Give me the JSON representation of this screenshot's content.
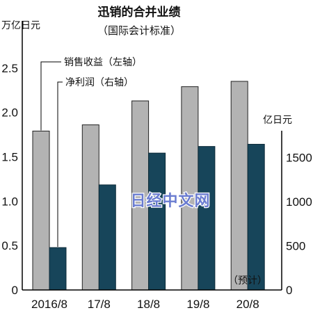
{
  "chart_data": {
    "type": "bar",
    "title": "迅销的合并业绩",
    "subtitle": "（国际会计标准）",
    "categories": [
      "2016/8",
      "17/8",
      "18/8",
      "19/8",
      "20/8"
    ],
    "series": [
      {
        "name": "销售收益（左轴）",
        "axis": "left",
        "color": "#b3b3b3",
        "values": [
          1.79,
          1.86,
          2.13,
          2.29,
          2.35
        ]
      },
      {
        "name": "净利润（右轴）",
        "axis": "right",
        "color": "#17455a",
        "values": [
          480,
          1190,
          1550,
          1625,
          1650
        ]
      }
    ],
    "y_left": {
      "unit": "万亿日元",
      "ylim": [
        0,
        3.0
      ],
      "ticks": [
        "0",
        "0.5",
        "1.0",
        "1.5",
        "2.0",
        "2.5"
      ]
    },
    "y_right": {
      "unit": "亿日元",
      "ylim": [
        0,
        2000
      ],
      "ticks": [
        "0",
        "500",
        "1000",
        "1500"
      ]
    },
    "annotation": "（预计）",
    "grid": false
  },
  "watermark": "日经中文网"
}
